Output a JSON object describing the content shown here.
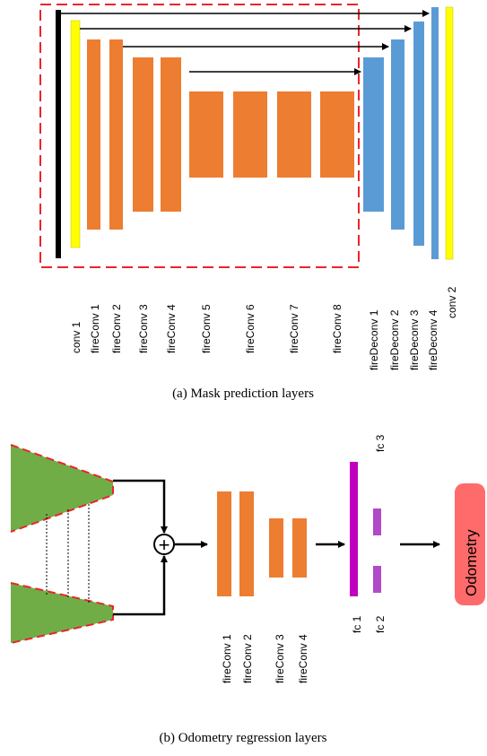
{
  "mask": {
    "caption": "(a) Mask prediction layers",
    "labels": [
      "conv 1",
      "fireConv 1",
      "fireConv 2",
      "fireConv 3",
      "fireConv 4",
      "fireConv 5",
      "fireConv 6",
      "fireConv 7",
      "fireConv 8",
      "fireDeconv 1",
      "fireDeconv 2",
      "fireDeconv 3",
      "fireDeconv 4",
      "conv 2"
    ]
  },
  "odometry": {
    "caption": "(b) Odometry regression layers",
    "labels": [
      "fireConv 1",
      "fireConv 2",
      "fireConv 3",
      "fireConv 4",
      "fc 1",
      "fc 2",
      "fc 3"
    ],
    "output_label": "Odometry",
    "plus_symbol": "+"
  },
  "colors": {
    "conv_black": "#000000",
    "conv_yellow": "#ffff00",
    "fire_orange": "#ed7d31",
    "deconv_blue": "#5b9bd5",
    "dashed_red": "#e8262a",
    "encoder_green": "#70ad47",
    "fc_magenta": "#c000c0",
    "odometry_pink": "#ff6b6b"
  }
}
